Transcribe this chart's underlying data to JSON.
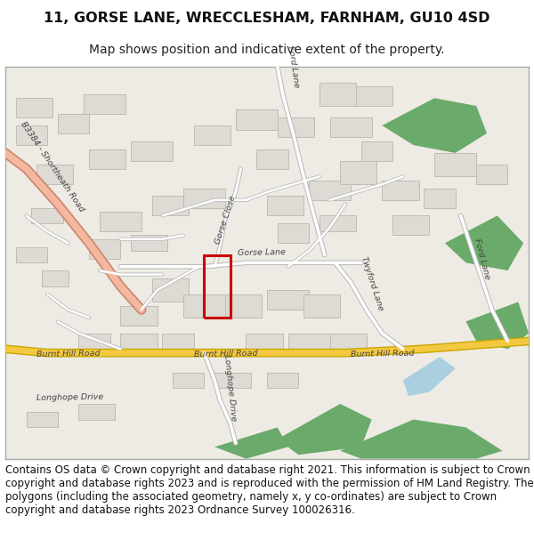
{
  "title_line1": "11, GORSE LANE, WRECCLESHAM, FARNHAM, GU10 4SD",
  "title_line2": "Map shows position and indicative extent of the property.",
  "copyright_text": "Contains OS data © Crown copyright and database right 2021. This information is subject to Crown copyright and database rights 2023 and is reproduced with the permission of HM Land Registry. The polygons (including the associated geometry, namely x, y co-ordinates) are subject to Crown copyright and database rights 2023 Ordnance Survey 100026316.",
  "title_fontsize": 11.5,
  "subtitle_fontsize": 10,
  "copyright_fontsize": 8.5,
  "bg_color": "#ffffff",
  "map_bg": "#eeebe4",
  "road_main_fill": "#f5c842",
  "road_main_outline": "#c8a800",
  "road_sec_fill": "#ffffff",
  "road_sec_outline": "#bbbbbb",
  "building_color": "#dedad4",
  "building_outline": "#c0bbb5",
  "green_color": "#6aaa6a",
  "water_color": "#9ecae1",
  "highlight_fill": "#f4b8a0",
  "highlight_outline": "#cc8870",
  "plot_outline_color": "#cc0000",
  "map_border_color": "#aaaaaa",
  "road_label_color": "#444444"
}
